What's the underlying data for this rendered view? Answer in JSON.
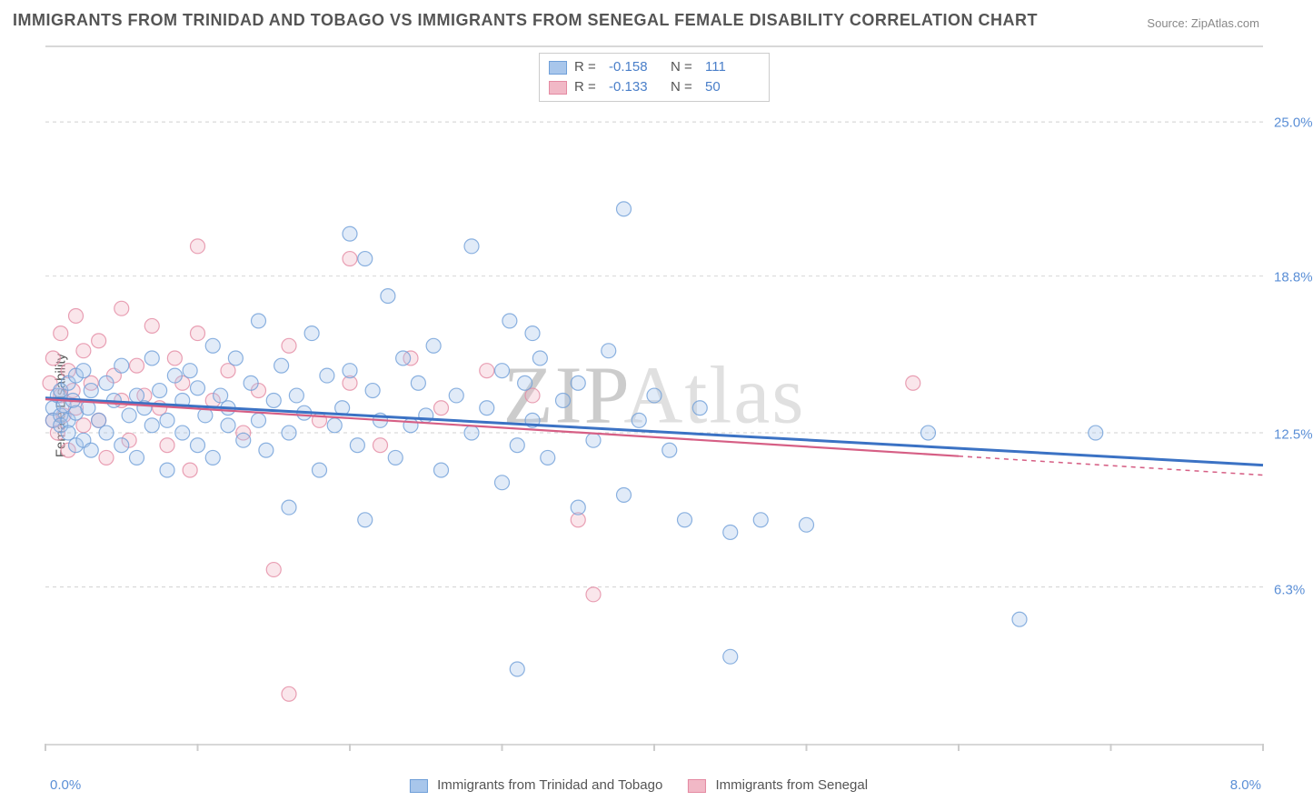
{
  "title": "IMMIGRANTS FROM TRINIDAD AND TOBAGO VS IMMIGRANTS FROM SENEGAL FEMALE DISABILITY CORRELATION CHART",
  "source_label": "Source:",
  "source_name": "ZipAtlas.com",
  "watermark": "ZIPAtlas",
  "chart": {
    "type": "scatter",
    "xlim": [
      0.0,
      8.0
    ],
    "ylim": [
      0.0,
      28.0
    ],
    "xticks": [
      0.0,
      1.0,
      2.0,
      3.0,
      4.0,
      5.0,
      6.0,
      7.0,
      8.0
    ],
    "xtick_labels_shown": {
      "left": "0.0%",
      "right": "8.0%"
    },
    "yticks": [
      6.3,
      12.5,
      18.8,
      25.0
    ],
    "ytick_labels": [
      "6.3%",
      "12.5%",
      "18.8%",
      "25.0%"
    ],
    "ylabel": "Female Disability",
    "background_color": "#ffffff",
    "grid_color": "#d0d0d0",
    "axis_color": "#d8d8d8",
    "tick_label_color": "#5b8fd6",
    "ylabel_color": "#555555",
    "marker_radius": 8,
    "series": [
      {
        "name": "Immigrants from Trinidad and Tobago",
        "fill": "#a8c6eb",
        "stroke": "#6f9fd8",
        "R": "-0.158",
        "N": "111",
        "trend": {
          "x1": 0.0,
          "y1": 13.9,
          "x2": 8.0,
          "y2": 11.2,
          "color": "#3b72c4",
          "width": 3,
          "dash": "none",
          "x_extent": 8.0
        },
        "points": [
          [
            0.05,
            13.5
          ],
          [
            0.05,
            13.0
          ],
          [
            0.08,
            14.0
          ],
          [
            0.1,
            13.2
          ],
          [
            0.1,
            14.2
          ],
          [
            0.1,
            12.8
          ],
          [
            0.12,
            13.6
          ],
          [
            0.15,
            13.0
          ],
          [
            0.15,
            14.5
          ],
          [
            0.15,
            12.5
          ],
          [
            0.18,
            13.8
          ],
          [
            0.2,
            14.8
          ],
          [
            0.2,
            12.0
          ],
          [
            0.2,
            13.3
          ],
          [
            0.25,
            15.0
          ],
          [
            0.25,
            12.2
          ],
          [
            0.28,
            13.5
          ],
          [
            0.3,
            14.2
          ],
          [
            0.3,
            11.8
          ],
          [
            0.35,
            13.0
          ],
          [
            0.4,
            14.5
          ],
          [
            0.4,
            12.5
          ],
          [
            0.45,
            13.8
          ],
          [
            0.5,
            15.2
          ],
          [
            0.5,
            12.0
          ],
          [
            0.55,
            13.2
          ],
          [
            0.6,
            14.0
          ],
          [
            0.6,
            11.5
          ],
          [
            0.65,
            13.5
          ],
          [
            0.7,
            15.5
          ],
          [
            0.7,
            12.8
          ],
          [
            0.75,
            14.2
          ],
          [
            0.8,
            13.0
          ],
          [
            0.8,
            11.0
          ],
          [
            0.85,
            14.8
          ],
          [
            0.9,
            12.5
          ],
          [
            0.9,
            13.8
          ],
          [
            0.95,
            15.0
          ],
          [
            1.0,
            12.0
          ],
          [
            1.0,
            14.3
          ],
          [
            1.05,
            13.2
          ],
          [
            1.1,
            16.0
          ],
          [
            1.1,
            11.5
          ],
          [
            1.15,
            14.0
          ],
          [
            1.2,
            12.8
          ],
          [
            1.2,
            13.5
          ],
          [
            1.25,
            15.5
          ],
          [
            1.3,
            12.2
          ],
          [
            1.35,
            14.5
          ],
          [
            1.4,
            13.0
          ],
          [
            1.4,
            17.0
          ],
          [
            1.45,
            11.8
          ],
          [
            1.5,
            13.8
          ],
          [
            1.55,
            15.2
          ],
          [
            1.6,
            12.5
          ],
          [
            1.6,
            9.5
          ],
          [
            1.65,
            14.0
          ],
          [
            1.7,
            13.3
          ],
          [
            1.75,
            16.5
          ],
          [
            1.8,
            11.0
          ],
          [
            1.85,
            14.8
          ],
          [
            1.9,
            12.8
          ],
          [
            1.95,
            13.5
          ],
          [
            2.0,
            15.0
          ],
          [
            2.0,
            20.5
          ],
          [
            2.05,
            12.0
          ],
          [
            2.1,
            9.0
          ],
          [
            2.1,
            19.5
          ],
          [
            2.15,
            14.2
          ],
          [
            2.2,
            13.0
          ],
          [
            2.25,
            18.0
          ],
          [
            2.3,
            11.5
          ],
          [
            2.35,
            15.5
          ],
          [
            2.4,
            12.8
          ],
          [
            2.45,
            14.5
          ],
          [
            2.5,
            13.2
          ],
          [
            2.55,
            16.0
          ],
          [
            2.6,
            11.0
          ],
          [
            2.7,
            14.0
          ],
          [
            2.8,
            12.5
          ],
          [
            2.8,
            20.0
          ],
          [
            2.9,
            13.5
          ],
          [
            3.0,
            15.0
          ],
          [
            3.0,
            10.5
          ],
          [
            3.05,
            17.0
          ],
          [
            3.1,
            12.0
          ],
          [
            3.1,
            3.0
          ],
          [
            3.15,
            14.5
          ],
          [
            3.2,
            13.0
          ],
          [
            3.2,
            16.5
          ],
          [
            3.25,
            15.5
          ],
          [
            3.3,
            11.5
          ],
          [
            3.4,
            13.8
          ],
          [
            3.5,
            14.5
          ],
          [
            3.5,
            9.5
          ],
          [
            3.6,
            12.2
          ],
          [
            3.7,
            15.8
          ],
          [
            3.8,
            21.5
          ],
          [
            3.8,
            10.0
          ],
          [
            3.9,
            13.0
          ],
          [
            4.0,
            14.0
          ],
          [
            4.1,
            11.8
          ],
          [
            4.2,
            9.0
          ],
          [
            4.3,
            13.5
          ],
          [
            4.5,
            8.5
          ],
          [
            4.5,
            3.5
          ],
          [
            4.7,
            9.0
          ],
          [
            5.0,
            8.8
          ],
          [
            5.8,
            12.5
          ],
          [
            6.4,
            5.0
          ],
          [
            6.9,
            12.5
          ]
        ]
      },
      {
        "name": "Immigrants from Senegal",
        "fill": "#f1b8c6",
        "stroke": "#e48aa2",
        "R": "-0.133",
        "N": "50",
        "trend": {
          "x1": 0.0,
          "y1": 13.85,
          "x2": 8.0,
          "y2": 10.8,
          "color": "#d65f85",
          "width": 2.2,
          "dash": "none",
          "x_extent": 6.0,
          "dash_after": "5,5"
        },
        "points": [
          [
            0.03,
            14.5
          ],
          [
            0.05,
            13.0
          ],
          [
            0.05,
            15.5
          ],
          [
            0.08,
            12.5
          ],
          [
            0.1,
            14.0
          ],
          [
            0.1,
            16.5
          ],
          [
            0.12,
            13.2
          ],
          [
            0.15,
            15.0
          ],
          [
            0.15,
            11.8
          ],
          [
            0.18,
            14.2
          ],
          [
            0.2,
            13.5
          ],
          [
            0.2,
            17.2
          ],
          [
            0.25,
            12.8
          ],
          [
            0.25,
            15.8
          ],
          [
            0.3,
            14.5
          ],
          [
            0.35,
            13.0
          ],
          [
            0.35,
            16.2
          ],
          [
            0.4,
            11.5
          ],
          [
            0.45,
            14.8
          ],
          [
            0.5,
            13.8
          ],
          [
            0.5,
            17.5
          ],
          [
            0.55,
            12.2
          ],
          [
            0.6,
            15.2
          ],
          [
            0.65,
            14.0
          ],
          [
            0.7,
            16.8
          ],
          [
            0.75,
            13.5
          ],
          [
            0.8,
            12.0
          ],
          [
            0.85,
            15.5
          ],
          [
            0.9,
            14.5
          ],
          [
            0.95,
            11.0
          ],
          [
            1.0,
            16.5
          ],
          [
            1.0,
            20.0
          ],
          [
            1.1,
            13.8
          ],
          [
            1.2,
            15.0
          ],
          [
            1.3,
            12.5
          ],
          [
            1.4,
            14.2
          ],
          [
            1.5,
            7.0
          ],
          [
            1.6,
            16.0
          ],
          [
            1.6,
            2.0
          ],
          [
            1.8,
            13.0
          ],
          [
            2.0,
            14.5
          ],
          [
            2.0,
            19.5
          ],
          [
            2.2,
            12.0
          ],
          [
            2.4,
            15.5
          ],
          [
            2.6,
            13.5
          ],
          [
            2.9,
            15.0
          ],
          [
            3.2,
            14.0
          ],
          [
            3.5,
            9.0
          ],
          [
            3.6,
            6.0
          ],
          [
            5.7,
            14.5
          ]
        ]
      }
    ]
  },
  "legend_bottom": [
    {
      "swatch_fill": "#a8c6eb",
      "swatch_stroke": "#6f9fd8",
      "label": "Immigrants from Trinidad and Tobago"
    },
    {
      "swatch_fill": "#f1b8c6",
      "swatch_stroke": "#e48aa2",
      "label": "Immigrants from Senegal"
    }
  ]
}
